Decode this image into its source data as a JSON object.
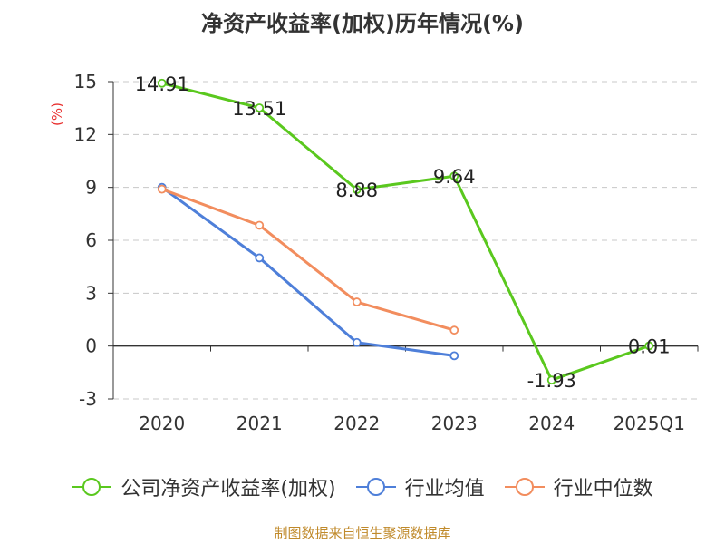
{
  "chart_data": {
    "type": "line",
    "title": "净资产收益率(加权)历年情况(%)",
    "ylabel": "(%)",
    "categories": [
      "2020",
      "2021",
      "2022",
      "2023",
      "2024",
      "2025Q1"
    ],
    "y_ticks": [
      15,
      12,
      9,
      6,
      3,
      0,
      -3
    ],
    "ylim": [
      -3,
      15
    ],
    "grid": true,
    "legend_position": "bottom",
    "series": [
      {
        "name": "公司净资产收益率(加权)",
        "color": "#5ac81e",
        "values": [
          14.91,
          13.51,
          8.88,
          9.64,
          -1.93,
          0.01
        ],
        "labels": [
          "14.91",
          "13.51",
          "8.88",
          "9.64",
          "-1.93",
          "0.01"
        ]
      },
      {
        "name": "行业均值",
        "color": "#4e7fd9",
        "values": [
          9.0,
          5.0,
          0.2,
          -0.55,
          null,
          null
        ]
      },
      {
        "name": "行业中位数",
        "color": "#f28d5e",
        "values": [
          8.9,
          6.85,
          2.5,
          0.9,
          null,
          null
        ]
      }
    ],
    "source": "制图数据来自恒生聚源数据库"
  }
}
